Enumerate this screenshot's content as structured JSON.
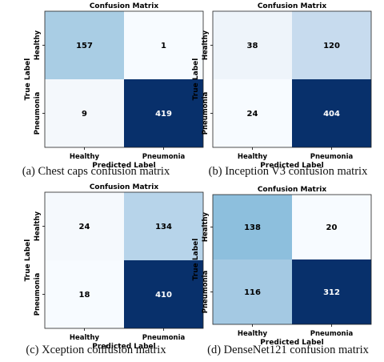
{
  "chart_data": [
    {
      "type": "heatmap",
      "title": "Confusion Matrix",
      "xlabel": "Predicted Label",
      "ylabel": "True Label",
      "x_categories": [
        "Healthy",
        "Pneumonia"
      ],
      "y_categories": [
        "Healthy",
        "Pneumonia"
      ],
      "values": [
        [
          157,
          1
        ],
        [
          9,
          419
        ]
      ],
      "colors": [
        [
          "#a9cde4",
          "#f7fbff"
        ],
        [
          "#f4f8fc",
          "#08306b"
        ]
      ],
      "caption": "(a) Chest caps confusion matrix"
    },
    {
      "type": "heatmap",
      "title": "Confusion Matrix",
      "xlabel": "Predicted Label",
      "ylabel": "True Label",
      "x_categories": [
        "Healthy",
        "Pneumonia"
      ],
      "y_categories": [
        "Healthy",
        "Pneumonia"
      ],
      "values": [
        [
          38,
          120
        ],
        [
          24,
          404
        ]
      ],
      "colors": [
        [
          "#eef4fa",
          "#c7dbee"
        ],
        [
          "#f7fbff",
          "#08306b"
        ]
      ],
      "caption": "(b) Inception V3 confusion matrix"
    },
    {
      "type": "heatmap",
      "title": "Confusion Matrix",
      "xlabel": "Predicted Label",
      "ylabel": "True Label",
      "x_categories": [
        "Healthy",
        "Pneumonia"
      ],
      "y_categories": [
        "Healthy",
        "Pneumonia"
      ],
      "values": [
        [
          24,
          134
        ],
        [
          18,
          410
        ]
      ],
      "colors": [
        [
          "#f5f9fd",
          "#b7d4ea"
        ],
        [
          "#f7fbff",
          "#08306b"
        ]
      ],
      "caption": "(c) Xception confusion matrix"
    },
    {
      "type": "heatmap",
      "title": "Confusion Matrix",
      "xlabel": "Predicted Label",
      "ylabel": "True Label",
      "x_categories": [
        "Healthy",
        "Pneumonia"
      ],
      "y_categories": [
        "Healthy",
        "Pneumonia"
      ],
      "values": [
        [
          138,
          20
        ],
        [
          116,
          312
        ]
      ],
      "colors": [
        [
          "#8dbfdd",
          "#f7fbff"
        ],
        [
          "#a4c9e3",
          "#08306b"
        ]
      ],
      "caption": "(d) DenseNet121 confusion matrix"
    }
  ]
}
